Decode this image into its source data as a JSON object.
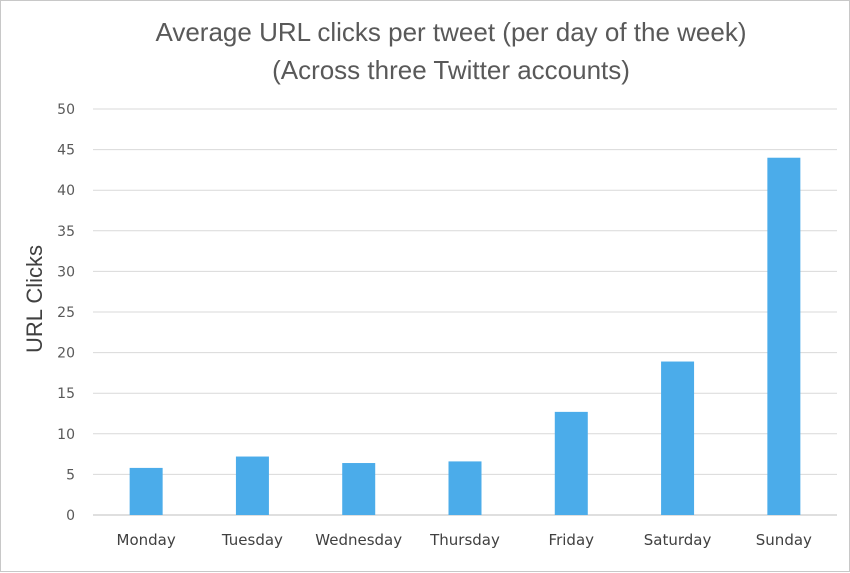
{
  "chart_data": {
    "type": "bar",
    "title": "Average URL clicks per tweet (per day of the week)",
    "subtitle": "(Across three Twitter accounts)",
    "xlabel": "",
    "ylabel": "URL Clicks",
    "categories": [
      "Monday",
      "Tuesday",
      "Wednesday",
      "Thursday",
      "Friday",
      "Saturday",
      "Sunday"
    ],
    "values": [
      5.8,
      7.2,
      6.4,
      6.6,
      12.7,
      18.9,
      44.0
    ],
    "ylim": [
      0,
      50
    ],
    "yticks": [
      0,
      5,
      10,
      15,
      20,
      25,
      30,
      35,
      40,
      45,
      50
    ],
    "grid": true,
    "legend": "none",
    "bar_color": "#4BACEA"
  }
}
